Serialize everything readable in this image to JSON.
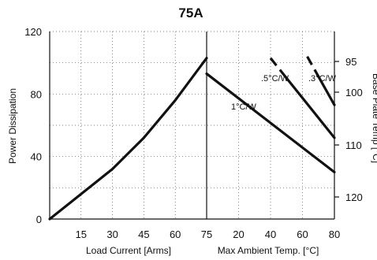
{
  "chart_data": {
    "type": "line",
    "title": "75A",
    "left_panel": {
      "xlabel": "Load Current  [Arms]",
      "ylabel": "Power Dissipation",
      "xlim": [
        0,
        75
      ],
      "ylim": [
        0,
        120
      ],
      "xticks": [
        15,
        30,
        45,
        60,
        75
      ],
      "yticks": [
        0,
        40,
        80,
        120
      ],
      "series": [
        {
          "x": [
            0,
            15,
            30,
            45,
            60,
            75
          ],
          "y": [
            0,
            16,
            32,
            52,
            76,
            103
          ]
        }
      ]
    },
    "right_panel": {
      "xlabel": "Max Ambient Temp. [°C]",
      "y2label": "Base Plate Temp [°C]",
      "xlim": [
        0,
        80
      ],
      "xticks": [
        20,
        40,
        60,
        80
      ],
      "y2lim": [
        90,
        125
      ],
      "y2ticks": [
        95,
        100,
        110,
        120
      ],
      "series": [
        {
          "name": "1°C/W",
          "dashed_segment": [],
          "x": [
            0,
            80
          ],
          "y": [
            93,
            30
          ]
        },
        {
          "name": ".5°C/W",
          "dashed_x": [
            40,
            48
          ],
          "x": [
            40,
            80
          ],
          "y": [
            103,
            52
          ]
        },
        {
          "name": ".3°C/W",
          "dashed_x": [
            63,
            70
          ],
          "x": [
            63,
            80
          ],
          "y": [
            104,
            73
          ]
        }
      ]
    },
    "grid": true
  }
}
